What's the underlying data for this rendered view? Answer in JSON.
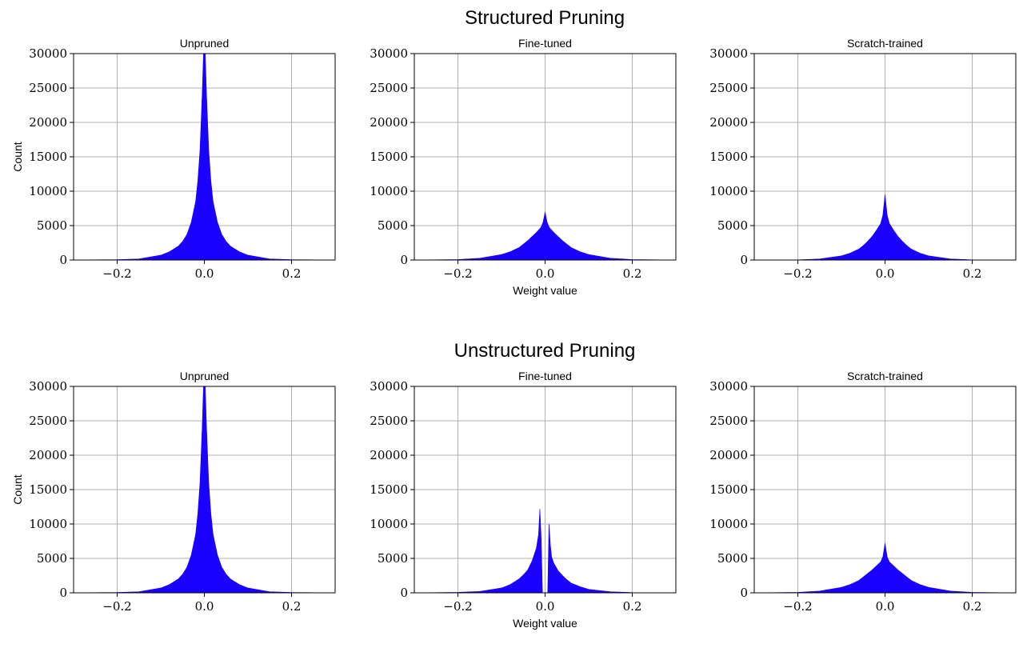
{
  "figure": {
    "rows": [
      {
        "title": "Structured Pruning"
      },
      {
        "title": "Unstructured Pruning"
      }
    ]
  },
  "chart_data": [
    {
      "type": "area",
      "row": 0,
      "title": "Unpruned",
      "xlabel": "",
      "ylabel": "Count",
      "xlim": [
        -0.3,
        0.3
      ],
      "ylim": [
        0,
        30000
      ],
      "xticks": [
        -0.2,
        0.0,
        0.2
      ],
      "xtick_labels": [
        "−0.2",
        "0.0",
        "0.2"
      ],
      "yticks": [
        0,
        5000,
        10000,
        15000,
        20000,
        25000,
        30000
      ],
      "ytick_labels": [
        "0",
        "5000",
        "10000",
        "15000",
        "20000",
        "25000",
        "30000"
      ],
      "grid": true,
      "color": "#1a00ff",
      "x": [
        -0.3,
        -0.2,
        -0.15,
        -0.1,
        -0.08,
        -0.06,
        -0.05,
        -0.04,
        -0.03,
        -0.02,
        -0.015,
        -0.01,
        -0.005,
        -0.002,
        0.0,
        0.002,
        0.005,
        0.01,
        0.015,
        0.02,
        0.03,
        0.04,
        0.05,
        0.06,
        0.08,
        0.1,
        0.15,
        0.2,
        0.3
      ],
      "y": [
        0,
        50,
        150,
        700,
        1200,
        2000,
        2700,
        3700,
        5500,
        8500,
        11500,
        16000,
        24000,
        30000,
        30000,
        30000,
        24000,
        16000,
        11500,
        8500,
        5500,
        3700,
        2700,
        2000,
        1200,
        700,
        150,
        50,
        0
      ]
    },
    {
      "type": "area",
      "row": 0,
      "title": "Fine-tuned",
      "xlabel": "Weight value",
      "ylabel": "",
      "xlim": [
        -0.3,
        0.3
      ],
      "ylim": [
        0,
        30000
      ],
      "xticks": [
        -0.2,
        0.0,
        0.2
      ],
      "xtick_labels": [
        "−0.2",
        "0.0",
        "0.2"
      ],
      "yticks": [
        0,
        5000,
        10000,
        15000,
        20000,
        25000,
        30000
      ],
      "ytick_labels": [
        "0",
        "5000",
        "10000",
        "15000",
        "20000",
        "25000",
        "30000"
      ],
      "grid": true,
      "color": "#1a00ff",
      "x": [
        -0.3,
        -0.2,
        -0.15,
        -0.1,
        -0.08,
        -0.06,
        -0.05,
        -0.04,
        -0.03,
        -0.02,
        -0.01,
        -0.005,
        -0.002,
        0.0,
        0.002,
        0.005,
        0.01,
        0.02,
        0.03,
        0.04,
        0.05,
        0.06,
        0.08,
        0.1,
        0.15,
        0.2,
        0.3
      ],
      "y": [
        0,
        60,
        250,
        800,
        1200,
        1800,
        2300,
        2800,
        3400,
        4000,
        4700,
        5400,
        6300,
        7000,
        6300,
        5400,
        4700,
        4000,
        3400,
        2800,
        2300,
        1800,
        1200,
        800,
        250,
        60,
        0
      ]
    },
    {
      "type": "area",
      "row": 0,
      "title": "Scratch-trained",
      "xlabel": "",
      "ylabel": "",
      "xlim": [
        -0.3,
        0.3
      ],
      "ylim": [
        0,
        30000
      ],
      "xticks": [
        -0.2,
        0.0,
        0.2
      ],
      "xtick_labels": [
        "−0.2",
        "0.0",
        "0.2"
      ],
      "yticks": [
        0,
        5000,
        10000,
        15000,
        20000,
        25000,
        30000
      ],
      "ytick_labels": [
        "0",
        "5000",
        "10000",
        "15000",
        "20000",
        "25000",
        "30000"
      ],
      "grid": true,
      "color": "#1a00ff",
      "x": [
        -0.3,
        -0.2,
        -0.15,
        -0.1,
        -0.08,
        -0.06,
        -0.05,
        -0.04,
        -0.03,
        -0.02,
        -0.01,
        -0.005,
        -0.002,
        0.0,
        0.002,
        0.005,
        0.01,
        0.02,
        0.03,
        0.04,
        0.05,
        0.06,
        0.08,
        0.1,
        0.15,
        0.2,
        0.3
      ],
      "y": [
        0,
        30,
        150,
        600,
        1000,
        1600,
        2100,
        2700,
        3400,
        4300,
        5300,
        6500,
        8300,
        9500,
        8300,
        6500,
        5300,
        4300,
        3400,
        2700,
        2100,
        1600,
        1000,
        600,
        150,
        30,
        0
      ]
    },
    {
      "type": "area",
      "row": 1,
      "title": "Unpruned",
      "xlabel": "",
      "ylabel": "Count",
      "xlim": [
        -0.3,
        0.3
      ],
      "ylim": [
        0,
        30000
      ],
      "xticks": [
        -0.2,
        0.0,
        0.2
      ],
      "xtick_labels": [
        "−0.2",
        "0.0",
        "0.2"
      ],
      "yticks": [
        0,
        5000,
        10000,
        15000,
        20000,
        25000,
        30000
      ],
      "ytick_labels": [
        "0",
        "5000",
        "10000",
        "15000",
        "20000",
        "25000",
        "30000"
      ],
      "grid": true,
      "color": "#1a00ff",
      "x": [
        -0.3,
        -0.2,
        -0.15,
        -0.1,
        -0.08,
        -0.06,
        -0.05,
        -0.04,
        -0.03,
        -0.02,
        -0.015,
        -0.01,
        -0.005,
        -0.002,
        0.0,
        0.002,
        0.005,
        0.01,
        0.015,
        0.02,
        0.03,
        0.04,
        0.05,
        0.06,
        0.08,
        0.1,
        0.15,
        0.2,
        0.3
      ],
      "y": [
        0,
        50,
        150,
        700,
        1200,
        2000,
        2700,
        3700,
        5500,
        8500,
        11500,
        16000,
        24000,
        30000,
        30000,
        30000,
        24000,
        16000,
        11500,
        8500,
        5500,
        3700,
        2700,
        2000,
        1200,
        700,
        150,
        50,
        0
      ]
    },
    {
      "type": "area",
      "row": 1,
      "title": "Fine-tuned",
      "xlabel": "Weight value",
      "ylabel": "",
      "xlim": [
        -0.3,
        0.3
      ],
      "ylim": [
        0,
        30000
      ],
      "xticks": [
        -0.2,
        0.0,
        0.2
      ],
      "xtick_labels": [
        "−0.2",
        "0.0",
        "0.2"
      ],
      "yticks": [
        0,
        5000,
        10000,
        15000,
        20000,
        25000,
        30000
      ],
      "ytick_labels": [
        "0",
        "5000",
        "10000",
        "15000",
        "20000",
        "25000",
        "30000"
      ],
      "grid": true,
      "color": "#1a00ff",
      "x": [
        -0.3,
        -0.2,
        -0.15,
        -0.1,
        -0.08,
        -0.06,
        -0.05,
        -0.04,
        -0.03,
        -0.02,
        -0.015,
        -0.012,
        -0.009,
        -0.006,
        0.006,
        0.009,
        0.012,
        0.015,
        0.02,
        0.03,
        0.04,
        0.05,
        0.06,
        0.08,
        0.1,
        0.15,
        0.2,
        0.3
      ],
      "y": [
        0,
        60,
        200,
        700,
        1200,
        2000,
        2600,
        3300,
        4600,
        6500,
        8500,
        12200,
        8000,
        0,
        0,
        10000,
        7000,
        5200,
        4300,
        3200,
        2500,
        1900,
        1400,
        900,
        500,
        150,
        40,
        0
      ]
    },
    {
      "type": "area",
      "row": 1,
      "title": "Scratch-trained",
      "xlabel": "",
      "ylabel": "",
      "xlim": [
        -0.3,
        0.3
      ],
      "ylim": [
        0,
        30000
      ],
      "xticks": [
        -0.2,
        0.0,
        0.2
      ],
      "xtick_labels": [
        "−0.2",
        "0.0",
        "0.2"
      ],
      "yticks": [
        0,
        5000,
        10000,
        15000,
        20000,
        25000,
        30000
      ],
      "ytick_labels": [
        "0",
        "5000",
        "10000",
        "15000",
        "20000",
        "25000",
        "30000"
      ],
      "grid": true,
      "color": "#1a00ff",
      "x": [
        -0.3,
        -0.2,
        -0.15,
        -0.1,
        -0.08,
        -0.06,
        -0.05,
        -0.04,
        -0.03,
        -0.02,
        -0.01,
        -0.005,
        -0.002,
        0.0,
        0.002,
        0.005,
        0.01,
        0.02,
        0.03,
        0.04,
        0.05,
        0.06,
        0.08,
        0.1,
        0.15,
        0.2,
        0.3
      ],
      "y": [
        0,
        60,
        250,
        800,
        1200,
        1800,
        2300,
        2800,
        3300,
        3900,
        4500,
        5200,
        6400,
        7200,
        6400,
        5200,
        4500,
        3900,
        3300,
        2800,
        2300,
        1800,
        1200,
        800,
        250,
        60,
        0
      ]
    }
  ]
}
